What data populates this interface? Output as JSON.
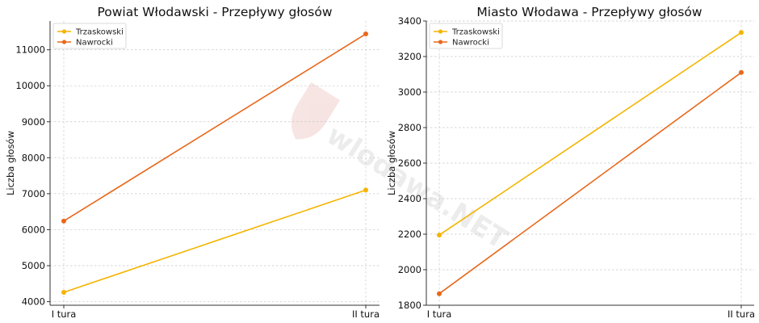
{
  "watermark": "wlodawa.NET",
  "chart_data": [
    {
      "type": "line",
      "title": "Powiat Włodawski - Przepływy głosów",
      "xlabel": "",
      "ylabel": "Liczba głosów",
      "categories": [
        "I tura",
        "II tura"
      ],
      "ylim": [
        3900,
        11800
      ],
      "yticks": [
        4000,
        5000,
        6000,
        7000,
        8000,
        9000,
        10000,
        11000
      ],
      "grid": true,
      "legend_position": "top-left",
      "series": [
        {
          "name": "Trzaskowski",
          "color": "#f5b400",
          "values": [
            4260,
            7100
          ]
        },
        {
          "name": "Nawrocki",
          "color": "#e8681a",
          "values": [
            6240,
            11440
          ]
        }
      ]
    },
    {
      "type": "line",
      "title": "Miasto Włodawa - Przepływy głosów",
      "xlabel": "",
      "ylabel": "Liczba głosów",
      "categories": [
        "I tura",
        "II tura"
      ],
      "ylim": [
        1800,
        3400
      ],
      "yticks": [
        1800,
        2000,
        2200,
        2400,
        2600,
        2800,
        3000,
        3200,
        3400
      ],
      "grid": true,
      "legend_position": "top-left",
      "series": [
        {
          "name": "Trzaskowski",
          "color": "#f5b400",
          "values": [
            2195,
            3335
          ]
        },
        {
          "name": "Nawrocki",
          "color": "#e8681a",
          "values": [
            1865,
            3110
          ]
        }
      ]
    }
  ]
}
